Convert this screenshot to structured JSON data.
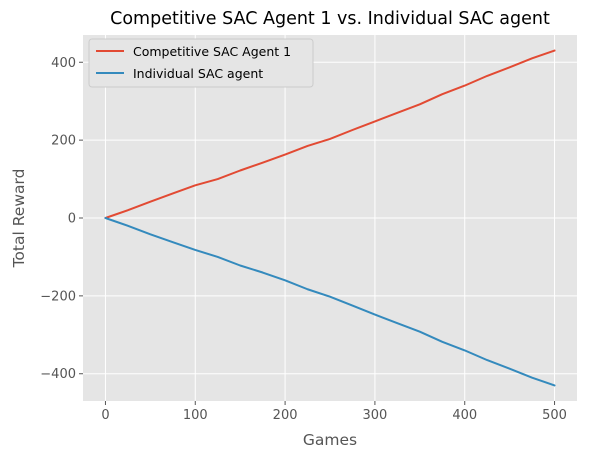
{
  "chart_data": {
    "type": "line",
    "title": "Competitive SAC Agent 1 vs. Individual SAC agent",
    "xlabel": "Games",
    "ylabel": "Total Reward",
    "xlim": [
      -25,
      525
    ],
    "ylim": [
      -470,
      470
    ],
    "xticks": [
      0,
      100,
      200,
      300,
      400,
      500
    ],
    "yticks": [
      -400,
      -200,
      0,
      200,
      400
    ],
    "xtick_labels": [
      "0",
      "100",
      "200",
      "300",
      "400",
      "500"
    ],
    "ytick_labels": [
      "−400",
      "−200",
      "0",
      "200",
      "400"
    ],
    "grid": true,
    "legend_position": "upper-left",
    "x": [
      0,
      25,
      50,
      75,
      100,
      125,
      150,
      175,
      200,
      225,
      250,
      275,
      300,
      325,
      350,
      375,
      400,
      425,
      450,
      475,
      500
    ],
    "series": [
      {
        "name": "Competitive SAC Agent 1",
        "color": "#E24A33",
        "values": [
          0,
          20,
          42,
          63,
          84,
          100,
          122,
          142,
          163,
          185,
          203,
          226,
          248,
          270,
          292,
          318,
          340,
          365,
          387,
          410,
          430
        ]
      },
      {
        "name": "Individual SAC agent",
        "color": "#348ABD",
        "values": [
          0,
          -20,
          -42,
          -62,
          -82,
          -100,
          -122,
          -140,
          -160,
          -183,
          -202,
          -225,
          -248,
          -270,
          -292,
          -318,
          -340,
          -365,
          -387,
          -410,
          -430
        ]
      }
    ]
  },
  "colors": {
    "plot_background": "#E5E5E5",
    "grid": "#FFFFFF"
  }
}
